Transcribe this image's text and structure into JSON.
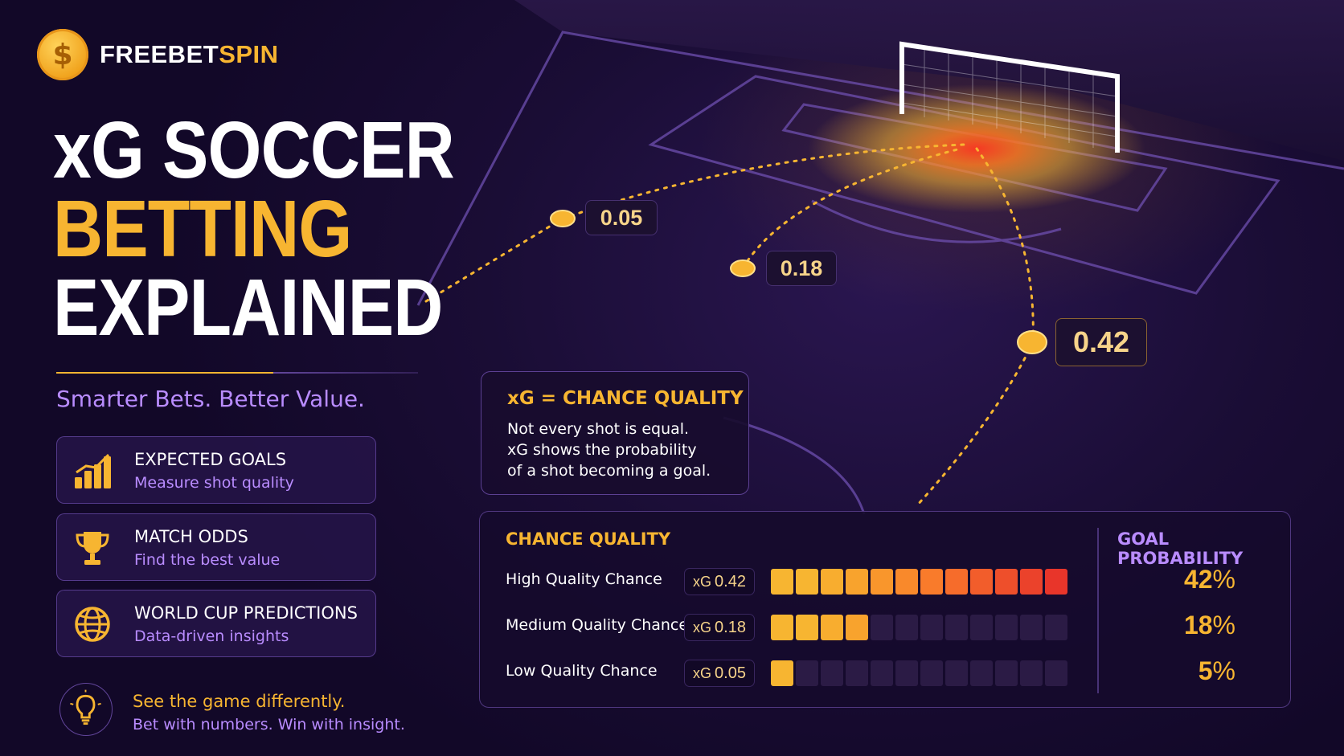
{
  "brand": {
    "symbol": "$",
    "name_part1": "FREEBET",
    "name_part2": "SPIN"
  },
  "title": {
    "line1": "xG SOCCER",
    "line2": "BETTING",
    "line3": "EXPLAINED"
  },
  "tagline": "Smarter Bets. Better Value.",
  "features": [
    {
      "icon": "bar-chart-icon",
      "title": "EXPECTED GOALS",
      "subtitle": "Measure shot quality"
    },
    {
      "icon": "trophy-icon",
      "title": "MATCH ODDS",
      "subtitle": "Find the best value"
    },
    {
      "icon": "globe-icon",
      "title": "WORLD CUP PREDICTIONS",
      "subtitle": "Data-driven insights"
    }
  ],
  "insight": {
    "icon": "lightbulb-icon",
    "line1": "See the game differently.",
    "line2": "Bet with numbers. Win with insight."
  },
  "shots": [
    {
      "xg": "0.05"
    },
    {
      "xg": "0.18"
    },
    {
      "xg": "0.42"
    }
  ],
  "info_box": {
    "heading": "xG = CHANCE QUALITY",
    "line1": "Not every shot is equal.",
    "line2": "xG shows the probability",
    "line3": "of a shot becoming a goal."
  },
  "table": {
    "header_quality": "CHANCE QUALITY",
    "header_probability": "GOAL PROBABILITY",
    "xg_prefix": "xG",
    "rows": [
      {
        "label": "High Quality Chance",
        "xg": "0.42",
        "filled": 12,
        "percent": "42",
        "unit": "%"
      },
      {
        "label": "Medium Quality Chance",
        "xg": "0.18",
        "filled": 4,
        "percent": "18",
        "unit": "%"
      },
      {
        "label": "Low Quality Chance",
        "xg": "0.05",
        "filled": 1,
        "percent": "5",
        "unit": "%"
      }
    ],
    "total_segments": 12
  },
  "colors": {
    "accent_gold": "#f7b531",
    "accent_purple": "#b98cff",
    "background": "#150a2a",
    "heat_red": "#e8352a"
  }
}
